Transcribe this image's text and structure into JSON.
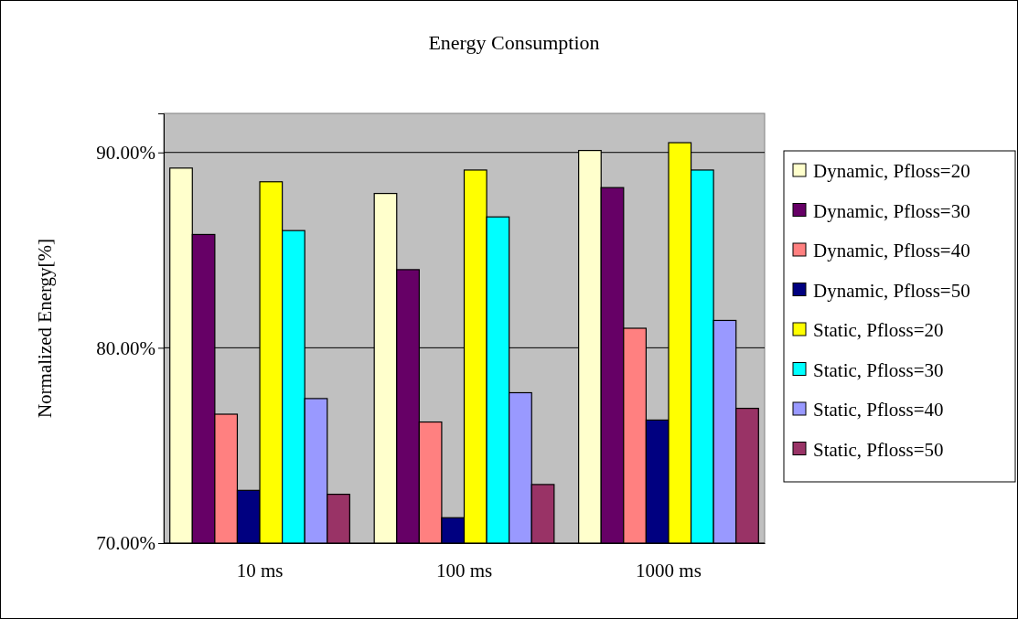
{
  "chart_data": {
    "type": "bar",
    "title": "Energy Consumption",
    "ylabel": "Normalized Energy[%]",
    "categories": [
      "10 ms",
      "100 ms",
      "1000 ms"
    ],
    "series": [
      {
        "name": "Dynamic, Pfloss=20",
        "color": "#ffffcc",
        "values": [
          89.2,
          87.9,
          90.1
        ]
      },
      {
        "name": "Dynamic, Pfloss=30",
        "color": "#660066",
        "values": [
          85.8,
          84.0,
          88.2
        ]
      },
      {
        "name": "Dynamic, Pfloss=40",
        "color": "#ff8080",
        "values": [
          76.6,
          76.2,
          81.0
        ]
      },
      {
        "name": "Dynamic, Pfloss=50",
        "color": "#000080",
        "values": [
          72.7,
          71.3,
          76.3
        ]
      },
      {
        "name": "Static, Pfloss=20",
        "color": "#ffff00",
        "values": [
          88.5,
          89.1,
          90.5
        ]
      },
      {
        "name": "Static, Pfloss=30",
        "color": "#00ffff",
        "values": [
          86.0,
          86.7,
          89.1
        ]
      },
      {
        "name": "Static, Pfloss=40",
        "color": "#9999ff",
        "values": [
          77.4,
          77.7,
          81.4
        ]
      },
      {
        "name": "Static, Pfloss=50",
        "color": "#993366",
        "values": [
          72.5,
          73.0,
          76.9
        ]
      }
    ],
    "ylim": [
      70,
      92
    ],
    "yticks": [
      {
        "value": 70,
        "label": "70.00%"
      },
      {
        "value": 80,
        "label": "80.00%"
      },
      {
        "value": 90,
        "label": "90.00%"
      }
    ],
    "grid": "y",
    "legend": "right"
  }
}
